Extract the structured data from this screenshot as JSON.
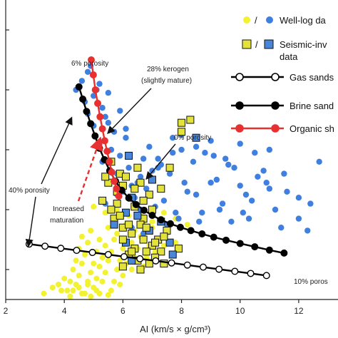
{
  "chart_data": {
    "type": "scatter",
    "xlabel": "AI (km/s × g/cm³)",
    "xlim": [
      2,
      13
    ],
    "ylim": [
      0,
      10
    ],
    "x_ticks": [
      2,
      4,
      6,
      8,
      10,
      12
    ],
    "y_ticks": [
      1,
      3,
      5,
      7,
      9
    ],
    "colors": {
      "well_log_yellow": "#f2f230",
      "well_log_blue": "#3f7fe0",
      "seismic_yellow": "#e2e23a",
      "seismic_blue": "#4a86d8",
      "brine": "#000000",
      "gas": "#000000",
      "organic": "#e83030"
    },
    "legend": [
      {
        "marker": "yellow-blue-dot",
        "label": "/",
        "label2": "Well-log da"
      },
      {
        "marker": "yellow-blue-square",
        "label": "/",
        "label2": "Seismic-inv",
        "label3": "data"
      },
      {
        "marker": "open-circle-line",
        "label": "Gas sands"
      },
      {
        "marker": "filled-circle-line",
        "label": "Brine sand"
      },
      {
        "marker": "red-circle-line",
        "label": "Organic sh"
      }
    ],
    "annotations": {
      "six_porosity": "6% porosity",
      "kerogen_line1": "28% kerogen",
      "kerogen_line2": "(slightly mature)",
      "zero_porosity": "0% porosity",
      "forty_porosity": "40% porosity",
      "maturation_line1": "Increased",
      "maturation_line2": "maturation",
      "ten_porosity": "10% poros"
    },
    "series": [
      {
        "name": "Gas sands",
        "x": [
          2.8,
          3.34,
          3.88,
          4.42,
          4.96,
          5.5,
          6.04,
          6.58,
          7.12,
          7.66,
          8.2,
          8.74,
          9.28,
          9.82,
          10.36,
          10.9
        ],
        "y": [
          1.85,
          1.78,
          1.71,
          1.64,
          1.57,
          1.5,
          1.43,
          1.36,
          1.29,
          1.22,
          1.15,
          1.08,
          1.01,
          0.94,
          0.87,
          0.8
        ]
      },
      {
        "name": "Brine sands",
        "x": [
          4.5,
          4.63,
          4.76,
          4.9,
          5.05,
          5.2,
          5.37,
          5.55,
          5.75,
          5.96,
          6.2,
          6.45,
          6.72,
          7.0,
          7.3,
          7.62,
          7.96,
          8.32,
          8.7,
          9.1,
          9.52,
          10.0,
          10.5,
          11.0,
          11.5
        ],
        "y": [
          7.1,
          6.69,
          6.28,
          5.87,
          5.46,
          5.05,
          4.67,
          4.3,
          3.95,
          3.65,
          3.39,
          3.17,
          2.98,
          2.81,
          2.66,
          2.53,
          2.41,
          2.3,
          2.19,
          2.08,
          1.98,
          1.87,
          1.76,
          1.65,
          1.55
        ]
      },
      {
        "name": "Organic shales",
        "x": [
          4.92,
          4.99,
          5.06,
          5.14,
          5.22,
          5.3,
          5.38,
          5.46,
          5.54,
          5.62,
          5.7,
          5.78,
          5.86
        ],
        "y": [
          8.0,
          7.5,
          7.0,
          6.55,
          6.1,
          5.7,
          5.3,
          4.95,
          4.6,
          4.25,
          3.95,
          3.7,
          3.45
        ]
      },
      {
        "name": "Well-log data (blue)",
        "x": [
          4.4,
          4.6,
          4.8,
          5.0,
          5.2,
          4.7,
          4.9,
          5.1,
          5.3,
          5.5,
          4.8,
          5.0,
          5.4,
          5.7,
          5.2,
          5.6,
          5.9,
          6.1,
          5.3,
          5.8,
          6.2,
          6.5,
          6.0,
          6.4,
          6.8,
          7.1,
          6.6,
          7.0,
          7.4,
          7.8,
          8.2,
          8.6,
          9.0,
          9.4,
          9.8,
          10.2,
          10.6,
          11.0,
          7.2,
          7.6,
          8.0,
          8.4,
          8.8,
          9.2,
          9.6,
          10.0,
          10.4,
          10.8,
          11.2,
          11.6,
          12.0,
          12.4,
          8.0,
          8.5,
          9.0,
          9.5,
          10.0,
          10.5,
          11.0,
          11.5,
          12.0,
          6.9,
          7.3,
          7.7,
          8.1,
          8.5,
          9.3,
          9.7,
          10.1,
          6.3,
          6.7,
          7.5,
          7.9,
          8.3,
          5.5,
          5.9,
          6.1,
          6.6,
          7.0,
          5.4,
          5.8,
          6.3,
          6.7,
          7.2,
          7.7,
          8.7,
          9.1,
          10.3,
          11.4,
          12.3,
          12.7,
          10.9
        ],
        "y": [
          7.0,
          7.3,
          7.6,
          6.8,
          7.2,
          6.6,
          7.8,
          7.0,
          6.4,
          6.9,
          6.2,
          5.8,
          6.1,
          5.6,
          5.2,
          5.0,
          4.8,
          5.4,
          4.6,
          4.2,
          4.4,
          3.9,
          3.6,
          3.4,
          3.7,
          3.1,
          3.0,
          2.8,
          3.3,
          2.9,
          3.6,
          2.6,
          3.9,
          3.2,
          4.4,
          3.5,
          4.1,
          3.7,
          4.7,
          4.2,
          5.0,
          4.6,
          4.9,
          4.0,
          4.5,
          3.8,
          3.3,
          4.3,
          3.0,
          3.6,
          2.7,
          3.2,
          5.5,
          5.1,
          5.3,
          4.7,
          5.2,
          4.9,
          5.0,
          4.2,
          3.4,
          5.1,
          4.5,
          4.9,
          3.9,
          3.5,
          3.0,
          2.6,
          2.9,
          2.4,
          2.2,
          2.5,
          2.7,
          2.3,
          5.9,
          6.3,
          5.7,
          4.1,
          4.3,
          3.2,
          3.5,
          3.8,
          4.7,
          4.4,
          5.4,
          2.9,
          4.8,
          2.7,
          2.4,
          2.3,
          4.6,
          3.9
        ]
      },
      {
        "name": "Well-log data (yellow)",
        "x": [
          4.6,
          4.9,
          5.2,
          5.5,
          5.8,
          6.1,
          6.4,
          6.7,
          7.0,
          7.3,
          7.6,
          4.5,
          4.8,
          5.1,
          5.4,
          5.7,
          6.0,
          6.3,
          6.6,
          6.9,
          7.2,
          7.5,
          7.8,
          4.4,
          4.7,
          5.0,
          5.3,
          5.6,
          5.9,
          6.2,
          6.5,
          6.8,
          7.1,
          7.4,
          4.3,
          4.6,
          4.9,
          5.2,
          5.5,
          5.8,
          6.1,
          6.4,
          6.7,
          7.0,
          4.2,
          4.5,
          4.8,
          5.1,
          5.4,
          5.7,
          6.0,
          6.3,
          4.1,
          4.4,
          4.7,
          5.0,
          5.3,
          5.6,
          5.9,
          3.8,
          4.0,
          4.3,
          4.6,
          4.9,
          5.2,
          5.5,
          3.3,
          3.6,
          3.9,
          4.2,
          4.5,
          4.8,
          5.1,
          6.6,
          7.0,
          7.4,
          7.8,
          8.2,
          5.0,
          5.4,
          5.8,
          6.2
        ],
        "y": [
          2.1,
          2.3,
          2.0,
          2.4,
          2.2,
          2.5,
          2.3,
          2.6,
          2.4,
          2.7,
          2.5,
          1.7,
          1.9,
          1.6,
          1.8,
          2.0,
          1.7,
          1.9,
          2.1,
          1.8,
          2.0,
          2.2,
          1.9,
          1.3,
          1.5,
          1.2,
          1.4,
          1.6,
          1.3,
          1.5,
          1.7,
          1.4,
          1.6,
          1.8,
          1.0,
          1.2,
          0.9,
          1.1,
          1.3,
          1.0,
          1.2,
          1.4,
          1.1,
          1.3,
          0.6,
          0.8,
          0.5,
          0.7,
          0.9,
          0.6,
          0.8,
          1.0,
          0.3,
          0.5,
          0.2,
          0.4,
          0.6,
          0.3,
          0.5,
          0.5,
          0.7,
          0.3,
          0.2,
          0.1,
          0.2,
          0.15,
          0.2,
          0.4,
          0.3,
          0.1,
          0.4,
          0.6,
          0.3,
          2.8,
          2.6,
          2.9,
          2.7,
          2.5,
          3.1,
          2.9,
          3.0,
          2.8
        ]
      },
      {
        "name": "Seismic-inversion data",
        "x": [
          5.6,
          5.9,
          6.2,
          6.5,
          6.0,
          6.3,
          6.6,
          6.9,
          5.8,
          6.1,
          6.4,
          6.7,
          7.0,
          7.3,
          5.7,
          6.0,
          6.3,
          6.6,
          6.9,
          7.2,
          7.5,
          6.1,
          6.4,
          6.7,
          7.0,
          7.3,
          7.6,
          7.9,
          6.2,
          6.5,
          6.8,
          7.1,
          7.4,
          7.7,
          8.0,
          5.5,
          5.8,
          6.1,
          6.4,
          6.7,
          7.0,
          7.3,
          7.6,
          8.0,
          8.3,
          8.5,
          5.3,
          5.6,
          5.9,
          6.2,
          6.5,
          6.8,
          7.1,
          7.4,
          6.0,
          6.3,
          6.6,
          6.9,
          5.4,
          5.7,
          6.0,
          6.3
        ],
        "y": [
          4.6,
          4.2,
          4.8,
          4.4,
          3.8,
          3.4,
          3.9,
          3.5,
          3.2,
          2.9,
          3.1,
          2.7,
          3.0,
          2.6,
          2.7,
          2.4,
          2.2,
          2.5,
          2.3,
          2.0,
          2.3,
          1.9,
          1.7,
          2.0,
          1.8,
          1.6,
          1.9,
          1.7,
          1.5,
          1.3,
          1.6,
          1.4,
          1.2,
          1.5,
          5.9,
          3.9,
          3.6,
          4.1,
          3.7,
          3.3,
          4.0,
          3.7,
          4.4,
          5.6,
          6.0,
          5.4,
          3.3,
          3.0,
          2.8,
          2.5,
          2.8,
          2.4,
          1.9,
          2.1,
          1.1,
          1.3,
          1.0,
          1.2,
          4.1,
          2.5,
          2.0,
          1.6
        ],
        "blue_indices": [
          2,
          5,
          9,
          13,
          18,
          21,
          26,
          33,
          40,
          45,
          50,
          55,
          59
        ]
      }
    ]
  }
}
